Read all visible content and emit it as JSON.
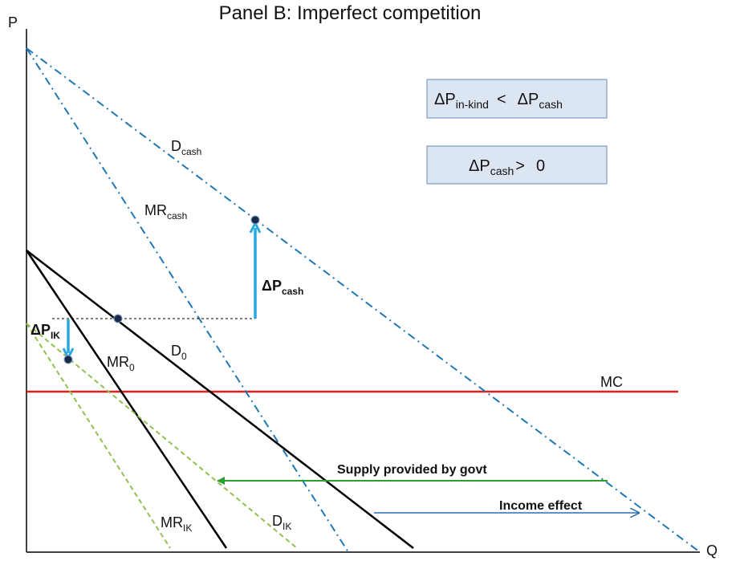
{
  "title": "Panel B: Imperfect competition",
  "axes": {
    "y_label": "P",
    "x_label": "Q"
  },
  "curves": {
    "d_cash": {
      "main": "D",
      "sub": "cash"
    },
    "mr_cash": {
      "main": "MR",
      "sub": "cash"
    },
    "d_zero": {
      "main": "D",
      "sub": "0"
    },
    "mr_zero": {
      "main": "MR",
      "sub": "0"
    },
    "d_ik": {
      "main": "D",
      "sub": "IK"
    },
    "mr_ik": {
      "main": "MR",
      "sub": "IK"
    },
    "mc": "MC"
  },
  "arrows": {
    "delta_p_cash": {
      "main": "ΔP",
      "sub": "cash"
    },
    "delta_p_ik": {
      "main": "ΔP",
      "sub": "IK"
    },
    "supply_govt": "Supply provided by govt",
    "income_effect": "Income effect"
  },
  "boxes": {
    "comparison": {
      "lhs_main": "ΔP",
      "lhs_sub": "in-kind",
      "op": "<",
      "rhs_main": "ΔP",
      "rhs_sub": "cash"
    },
    "positive": {
      "lhs_main": "ΔP",
      "lhs_sub": "cash",
      "op": ">",
      "rhs": "0"
    }
  },
  "colors": {
    "demand_original": "#000000",
    "cash_curves": "#1f77b4",
    "in_kind_curves": "#92c050",
    "mc": "#e3201b",
    "price_arrows": "#29a8e0",
    "supply_arrow": "#2ca02c",
    "income_arrow": "#2b6cb0"
  }
}
